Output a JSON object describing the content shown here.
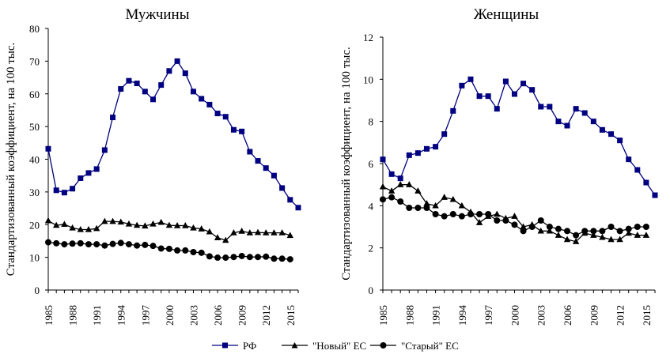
{
  "chart_data": [
    {
      "type": "line",
      "title": "Мужчины",
      "ylabel": "Стандартизованный коэффициент, на 100 тыс.",
      "xlabel": "",
      "ylim": [
        0,
        80
      ],
      "yticks": [
        0,
        10,
        20,
        30,
        40,
        50,
        60,
        70,
        80
      ],
      "xlim": [
        1985,
        2016
      ],
      "xticks": [
        1985,
        1988,
        1991,
        1994,
        1997,
        2000,
        2003,
        2006,
        2009,
        2012,
        2015
      ],
      "grid": false,
      "series": [
        {
          "name": "РФ",
          "marker": "square",
          "x": [
            1985,
            1986,
            1987,
            1988,
            1989,
            1990,
            1991,
            1992,
            1993,
            1994,
            1995,
            1996,
            1997,
            1998,
            1999,
            2000,
            2001,
            2002,
            2003,
            2004,
            2005,
            2006,
            2007,
            2008,
            2009,
            2010,
            2011,
            2012,
            2013,
            2014,
            2015,
            2016
          ],
          "y": [
            43.2,
            30.5,
            29.8,
            31,
            34.2,
            35.8,
            37,
            42.8,
            52.8,
            61.5,
            64,
            63.2,
            60.7,
            58.3,
            62.7,
            67,
            70,
            66.3,
            60.7,
            58.5,
            56.7,
            54,
            53,
            49,
            48.5,
            42.3,
            39.5,
            37.3,
            35,
            31.2,
            27.6,
            25.2
          ]
        },
        {
          "name": "\"Новый\" ЕС",
          "marker": "triangle",
          "x": [
            1985,
            1986,
            1987,
            1988,
            1989,
            1990,
            1991,
            1992,
            1993,
            1994,
            1995,
            1996,
            1997,
            1998,
            1999,
            2000,
            2001,
            2002,
            2003,
            2004,
            2005,
            2006,
            2007,
            2008,
            2009,
            2010,
            2011,
            2012,
            2013,
            2014,
            2015
          ],
          "y": [
            21.2,
            19.8,
            20.1,
            19,
            18.5,
            18.5,
            18.8,
            21,
            21,
            20.8,
            20.2,
            19.8,
            19.6,
            20.2,
            20.7,
            19.8,
            19.7,
            19.7,
            19,
            18.7,
            17.8,
            16,
            15.2,
            17.5,
            18,
            17.5,
            17.6,
            17.5,
            17.5,
            17.5,
            16.7
          ]
        },
        {
          "name": "\"Старый\" ЕС",
          "marker": "circle",
          "x": [
            1985,
            1986,
            1987,
            1988,
            1989,
            1990,
            1991,
            1992,
            1993,
            1994,
            1995,
            1996,
            1997,
            1998,
            1999,
            2000,
            2001,
            2002,
            2003,
            2004,
            2005,
            2006,
            2007,
            2008,
            2009,
            2010,
            2011,
            2012,
            2013,
            2014,
            2015
          ],
          "y": [
            14.6,
            14.3,
            14,
            14.2,
            14.3,
            14,
            14,
            13.6,
            14.1,
            14.4,
            14,
            13.6,
            13.8,
            13.5,
            12.7,
            12.6,
            12.1,
            12.1,
            11.6,
            11.4,
            10.3,
            9.9,
            9.9,
            10.1,
            10.4,
            10.1,
            10.1,
            10.2,
            9.6,
            9.6,
            9.4
          ]
        }
      ]
    },
    {
      "type": "line",
      "title": "Женщины",
      "ylabel": "Стандартизованный коэффициент, на 100 тыс.",
      "xlabel": "",
      "ylim": [
        0,
        12
      ],
      "yticks": [
        0,
        2,
        4,
        6,
        8,
        10,
        12
      ],
      "xlim": [
        1985,
        2016
      ],
      "xticks": [
        1985,
        1988,
        1991,
        1994,
        1997,
        2000,
        2003,
        2006,
        2009,
        2012,
        2015
      ],
      "grid": false,
      "series": [
        {
          "name": "РФ",
          "marker": "square",
          "x": [
            1985,
            1986,
            1987,
            1988,
            1989,
            1990,
            1991,
            1992,
            1993,
            1994,
            1995,
            1996,
            1997,
            1998,
            1999,
            2000,
            2001,
            2002,
            2003,
            2004,
            2005,
            2006,
            2007,
            2008,
            2009,
            2010,
            2011,
            2012,
            2013,
            2014,
            2015,
            2016
          ],
          "y": [
            6.2,
            5.5,
            5.3,
            6.4,
            6.5,
            6.7,
            6.8,
            7.4,
            8.5,
            9.7,
            10,
            9.2,
            9.2,
            8.6,
            9.9,
            9.3,
            9.8,
            9.5,
            8.7,
            8.7,
            8,
            7.8,
            8.6,
            8.4,
            8,
            7.6,
            7.4,
            7.1,
            6.2,
            5.7,
            5.1,
            4.5
          ]
        },
        {
          "name": "\"Новый\" ЕС",
          "marker": "triangle",
          "x": [
            1985,
            1986,
            1987,
            1988,
            1989,
            1990,
            1991,
            1992,
            1993,
            1994,
            1995,
            1996,
            1997,
            1998,
            1999,
            2000,
            2001,
            2002,
            2003,
            2004,
            2005,
            2006,
            2007,
            2008,
            2009,
            2010,
            2011,
            2012,
            2013,
            2014,
            2015
          ],
          "y": [
            4.9,
            4.7,
            5,
            5,
            4.7,
            4.1,
            4,
            4.4,
            4.3,
            4,
            3.7,
            3.2,
            3.5,
            3.6,
            3.4,
            3.5,
            3,
            3.1,
            2.8,
            2.8,
            2.6,
            2.4,
            2.3,
            2.7,
            2.6,
            2.5,
            2.4,
            2.4,
            2.7,
            2.6,
            2.6
          ]
        },
        {
          "name": "\"Старый\" ЕС",
          "marker": "circle",
          "x": [
            1985,
            1986,
            1987,
            1988,
            1989,
            1990,
            1991,
            1992,
            1993,
            1994,
            1995,
            1996,
            1997,
            1998,
            1999,
            2000,
            2001,
            2002,
            2003,
            2004,
            2005,
            2006,
            2007,
            2008,
            2009,
            2010,
            2011,
            2012,
            2013,
            2014,
            2015
          ],
          "y": [
            4.3,
            4.4,
            4.2,
            3.9,
            3.9,
            3.9,
            3.6,
            3.5,
            3.6,
            3.5,
            3.6,
            3.6,
            3.6,
            3.3,
            3.3,
            3.1,
            2.8,
            3,
            3.3,
            3,
            2.9,
            2.8,
            2.6,
            2.8,
            2.8,
            2.8,
            3,
            2.8,
            2.9,
            3,
            3
          ]
        }
      ]
    }
  ],
  "legend": {
    "placement": "bottom-center",
    "items": [
      "РФ",
      "\"Новый\" ЕС",
      "\"Старый\" ЕС"
    ]
  },
  "colors": {
    "rf": "#000080",
    "eu": "#000000"
  }
}
